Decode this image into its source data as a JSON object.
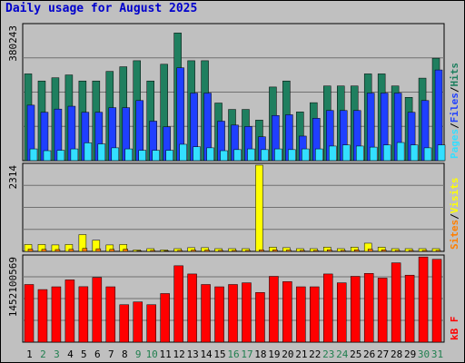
{
  "title": "Daily usage for August 2025",
  "colors": {
    "hits": "#1f7f5f",
    "files": "#1f3fff",
    "pages": "#33dfff",
    "visits": "#ffff00",
    "sites": "#ff7f00",
    "kbytes": "#ff0000",
    "weekday_label": "#000000",
    "weekend_label": "#207f4f",
    "panel_background": "#c0c0c0",
    "grid": "#707070"
  },
  "chart_data": [
    {
      "type": "bar",
      "panel": "hits-files-pages",
      "scale_label": "380243",
      "ylabel_parts": [
        "Pages",
        "Files",
        "Hits"
      ],
      "ymax": 380243,
      "categories": [
        "1",
        "2",
        "3",
        "4",
        "5",
        "6",
        "7",
        "8",
        "9",
        "10",
        "11",
        "12",
        "13",
        "14",
        "15",
        "16",
        "17",
        "18",
        "19",
        "20",
        "21",
        "22",
        "23",
        "24",
        "25",
        "26",
        "27",
        "28",
        "29",
        "30",
        "31"
      ],
      "weekend_days": [
        "2",
        "3",
        "9",
        "10",
        "16",
        "17",
        "23",
        "24",
        "30",
        "31"
      ],
      "series": [
        {
          "name": "Hits",
          "values": [
            244000,
            224000,
            233000,
            241000,
            224000,
            224000,
            251000,
            264000,
            281000,
            224000,
            271000,
            359000,
            281000,
            281000,
            162000,
            144000,
            144000,
            114000,
            207000,
            224000,
            137000,
            163000,
            210000,
            210000,
            210000,
            244000,
            244000,
            210000,
            178000,
            232000,
            288000
          ]
        },
        {
          "name": "Files",
          "values": [
            156000,
            136000,
            145000,
            153000,
            136000,
            136000,
            149000,
            149000,
            169000,
            111000,
            95000,
            261000,
            190000,
            190000,
            111000,
            100000,
            96000,
            67000,
            127000,
            129000,
            69000,
            119000,
            141000,
            141000,
            141000,
            190000,
            190000,
            190000,
            136000,
            169000,
            255000
          ]
        },
        {
          "name": "Pages",
          "values": [
            33000,
            28000,
            29000,
            33000,
            50000,
            47000,
            36000,
            33000,
            29000,
            29000,
            29000,
            46000,
            39000,
            36000,
            28000,
            31000,
            33000,
            31000,
            33000,
            31000,
            33000,
            33000,
            41000,
            44000,
            41000,
            38000,
            44000,
            51000,
            44000,
            36000,
            44000
          ]
        }
      ]
    },
    {
      "type": "bar",
      "panel": "visits-sites",
      "scale_label": "2314",
      "ylabel_parts": [
        "Sites",
        "Visits"
      ],
      "ymax": 2314,
      "categories": [
        "1",
        "2",
        "3",
        "4",
        "5",
        "6",
        "7",
        "8",
        "9",
        "10",
        "11",
        "12",
        "13",
        "14",
        "15",
        "16",
        "17",
        "18",
        "19",
        "20",
        "21",
        "22",
        "23",
        "24",
        "25",
        "26",
        "27",
        "28",
        "29",
        "30",
        "31"
      ],
      "series": [
        {
          "name": "Visits",
          "values": [
            185,
            185,
            173,
            185,
            450,
            300,
            173,
            185,
            38,
            73,
            38,
            73,
            100,
            100,
            73,
            73,
            73,
            2314,
            113,
            100,
            73,
            73,
            113,
            73,
            113,
            220,
            113,
            73,
            73,
            73,
            73
          ]
        },
        {
          "name": "Sites",
          "values": [
            60,
            55,
            50,
            55,
            80,
            70,
            55,
            60,
            15,
            25,
            15,
            25,
            35,
            35,
            25,
            25,
            25,
            40,
            40,
            35,
            25,
            25,
            40,
            25,
            40,
            60,
            40,
            25,
            25,
            25,
            25
          ]
        }
      ]
    },
    {
      "type": "bar",
      "panel": "kbytes",
      "scale_label": "1452100569",
      "ylabel_parts": [
        "kB",
        "F"
      ],
      "ymax": 1452100569,
      "categories": [
        "1",
        "2",
        "3",
        "4",
        "5",
        "6",
        "7",
        "8",
        "9",
        "10",
        "11",
        "12",
        "13",
        "14",
        "15",
        "16",
        "17",
        "18",
        "19",
        "20",
        "21",
        "22",
        "23",
        "24",
        "25",
        "26",
        "27",
        "28",
        "29",
        "30",
        "31"
      ],
      "series": [
        {
          "name": "kB F",
          "values": [
            981000000,
            895000000,
            942000000,
            1060000000,
            944000000,
            1100000000,
            942000000,
            637000000,
            685000000,
            637000000,
            827000000,
            1300000000,
            1160000000,
            981000000,
            942000000,
            981000000,
            1010000000,
            845000000,
            1120000000,
            1030000000,
            942000000,
            942000000,
            1160000000,
            1010000000,
            1120000000,
            1170000000,
            1090000000,
            1350000000,
            1140000000,
            1450000000,
            1410000000
          ]
        }
      ]
    }
  ]
}
